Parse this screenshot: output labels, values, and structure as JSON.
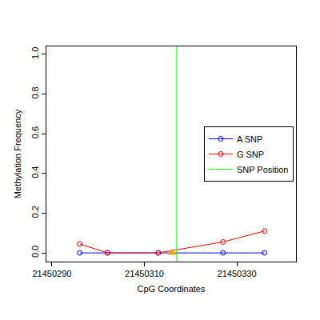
{
  "chart_data": {
    "type": "line",
    "x_label": "CpG Coordinates",
    "y_label": "Methylation Frequency",
    "xlim": [
      21450288.8,
      21450342.8
    ],
    "xticks": [
      21450290,
      21450310,
      21450330
    ],
    "ylim": [
      -0.044,
      1.04
    ],
    "yticks": [
      {
        "value": 0,
        "label": "0.0"
      },
      {
        "value": 0.2,
        "label": "0.2"
      },
      {
        "value": 0.4,
        "label": "0.4"
      },
      {
        "value": 0.6,
        "label": "0.6"
      },
      {
        "value": 0.8,
        "label": "0.8"
      },
      {
        "value": 1,
        "label": "1.0"
      }
    ],
    "grid": false,
    "legend": "right",
    "x": [
      21450296,
      21450302,
      21450313,
      21450327,
      21450336
    ],
    "series": [
      {
        "name": "A SNP",
        "color": "#0000ff",
        "marker": "open circle",
        "values": [
          0,
          0,
          0,
          0,
          0
        ]
      },
      {
        "name": "G SNP",
        "color": "#ff0000",
        "marker": "open circle",
        "values": [
          0.045,
          0,
          0,
          0.055,
          0.11
        ]
      },
      {
        "name": "SNP Position",
        "color": "#00ff00",
        "type": "vline",
        "x": 21450317
      }
    ],
    "snp_marker": {
      "x": 21450316,
      "y": 0,
      "color": "#ffa500",
      "marker": "triangle"
    }
  }
}
